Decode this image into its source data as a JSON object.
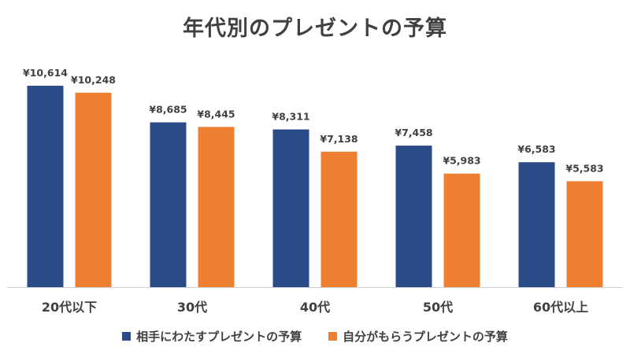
{
  "chart_data": {
    "type": "bar",
    "title": "年代別のプレゼントの予算",
    "categories": [
      "20代以下",
      "30代",
      "40代",
      "50代",
      "60代以上"
    ],
    "series": [
      {
        "name": "相手にわたすプレゼントの予算",
        "values": [
          10614,
          8685,
          8311,
          7458,
          6583
        ],
        "color": "#2a4b87"
      },
      {
        "name": "自分がもらうプレゼントの予算",
        "values": [
          10248,
          8445,
          7138,
          5983,
          5583
        ],
        "color": "#ee7f30"
      }
    ],
    "data_labels": [
      [
        "¥10,614",
        "¥8,685",
        "¥8,311",
        "¥7,458",
        "¥6,583"
      ],
      [
        "¥10,248",
        "¥8,445",
        "¥7,138",
        "¥5,983",
        "¥5,583"
      ]
    ],
    "ylim": [
      0,
      10614
    ],
    "grid": false,
    "legend_position": "bottom"
  }
}
